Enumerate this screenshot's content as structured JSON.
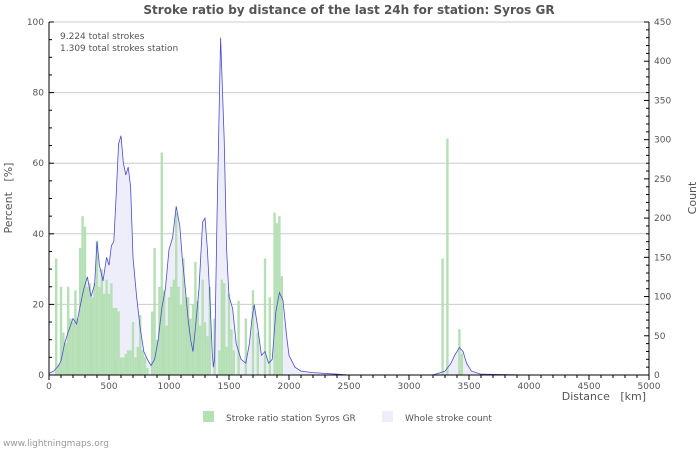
{
  "chart_data": {
    "type": "bar+area",
    "title": "Stroke ratio by distance of the last 24h for station: Syros GR",
    "xlabel": "Distance   [km]",
    "ylabel_left": "Percent   [%]",
    "ylabel_right": "Count",
    "xlim": [
      0,
      5000
    ],
    "ylim_left": [
      0,
      100
    ],
    "ylim_right": [
      0,
      450
    ],
    "x_ticks": [
      "0",
      "500",
      "1000",
      "1500",
      "2000",
      "2500",
      "3000",
      "3500",
      "4000",
      "4500",
      "5000"
    ],
    "y_left_ticks": [
      "0",
      "20",
      "40",
      "60",
      "80",
      "100"
    ],
    "y_right_ticks": [
      "0",
      "50",
      "100",
      "150",
      "200",
      "250",
      "300",
      "350",
      "400",
      "450"
    ],
    "grid": true,
    "annotations": [
      "9.224 total strokes",
      "1.309 total strokes station"
    ],
    "legend": [
      {
        "label": "Stroke ratio station Syros GR",
        "color": "#b5e0b5"
      },
      {
        "label": "Whole stroke count",
        "color": "#eeeefa"
      }
    ],
    "series": [
      {
        "name": "Stroke ratio station Syros GR",
        "kind": "bar",
        "axis": "left",
        "unit": "%",
        "x": [
          60,
          80,
          100,
          120,
          140,
          160,
          180,
          200,
          220,
          240,
          260,
          280,
          300,
          320,
          340,
          360,
          380,
          400,
          420,
          440,
          460,
          480,
          500,
          520,
          540,
          560,
          580,
          600,
          620,
          640,
          660,
          680,
          700,
          720,
          740,
          760,
          780,
          800,
          820,
          860,
          880,
          900,
          920,
          940,
          960,
          980,
          1000,
          1020,
          1040,
          1060,
          1080,
          1100,
          1120,
          1140,
          1160,
          1180,
          1200,
          1220,
          1240,
          1260,
          1280,
          1300,
          1320,
          1340,
          1380,
          1420,
          1440,
          1460,
          1480,
          1500,
          1520,
          1540,
          1580,
          1640,
          1700,
          1740,
          1800,
          1840,
          1880,
          1900,
          1920,
          1940,
          3280,
          3320,
          3420,
          3440
        ],
        "values": [
          33,
          3,
          25,
          12,
          9,
          25,
          16,
          15,
          24,
          16,
          36,
          45,
          42,
          25,
          26,
          22,
          26,
          38,
          25,
          30,
          23,
          27,
          23,
          26,
          19,
          19,
          18,
          5,
          5,
          6,
          7,
          7,
          15,
          5,
          8,
          17,
          7,
          5,
          2,
          18,
          36,
          10,
          25,
          63,
          24,
          14,
          22,
          25,
          27,
          46,
          25,
          20,
          33,
          22,
          22,
          16,
          20,
          32,
          21,
          14,
          27,
          15,
          11,
          25,
          16,
          7,
          27,
          26,
          8,
          23,
          13,
          7,
          21,
          16,
          24,
          12,
          33,
          22,
          46,
          43,
          45,
          28,
          33,
          67,
          13,
          6
        ]
      },
      {
        "name": "Whole stroke count",
        "kind": "area",
        "axis": "right",
        "unit": "count",
        "x": [
          0,
          40,
          80,
          100,
          130,
          160,
          200,
          230,
          260,
          290,
          320,
          350,
          380,
          400,
          420,
          450,
          480,
          500,
          520,
          540,
          560,
          580,
          600,
          620,
          640,
          660,
          680,
          700,
          730,
          760,
          790,
          820,
          850,
          880,
          910,
          940,
          970,
          1000,
          1030,
          1060,
          1090,
          1110,
          1130,
          1160,
          1180,
          1200,
          1220,
          1250,
          1280,
          1300,
          1320,
          1340,
          1360,
          1370,
          1380,
          1400,
          1430,
          1460,
          1480,
          1500,
          1530,
          1560,
          1600,
          1640,
          1670,
          1690,
          1710,
          1740,
          1770,
          1800,
          1830,
          1860,
          1890,
          1920,
          1950,
          1980,
          2000,
          2050,
          2100,
          2200,
          2300,
          2400,
          2500,
          3000,
          3200,
          3300,
          3350,
          3380,
          3420,
          3450,
          3480,
          3520,
          3600,
          4000,
          5000
        ],
        "values": [
          2,
          5,
          12,
          18,
          40,
          55,
          72,
          65,
          88,
          110,
          125,
          100,
          115,
          170,
          140,
          120,
          150,
          140,
          165,
          170,
          230,
          295,
          305,
          270,
          255,
          265,
          240,
          150,
          100,
          60,
          30,
          20,
          12,
          20,
          45,
          85,
          110,
          160,
          175,
          215,
          190,
          150,
          120,
          70,
          45,
          30,
          60,
          110,
          195,
          200,
          160,
          100,
          30,
          10,
          20,
          200,
          430,
          300,
          160,
          100,
          85,
          40,
          20,
          15,
          40,
          70,
          90,
          60,
          25,
          30,
          15,
          20,
          80,
          105,
          95,
          50,
          25,
          10,
          5,
          3,
          2,
          1,
          0,
          0,
          0,
          5,
          15,
          25,
          35,
          30,
          15,
          5,
          1,
          0,
          0
        ]
      }
    ]
  },
  "footer": {
    "credit": "www.lightningmaps.org"
  }
}
